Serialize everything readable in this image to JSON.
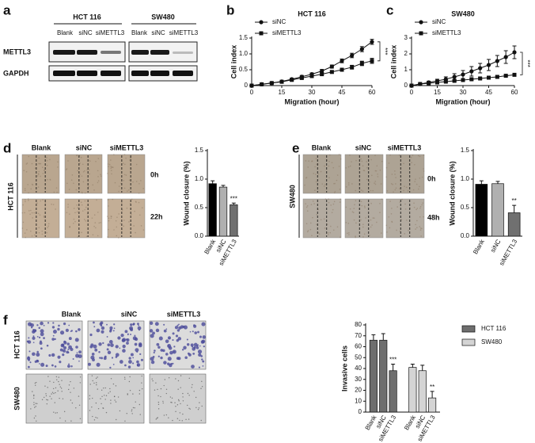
{
  "blot": {
    "panel": "a",
    "groups": [
      "HCT 116",
      "SW480"
    ],
    "lanes": [
      "Blank",
      "siNC",
      "siMETTL3"
    ],
    "rows": [
      "METTL3",
      "GAPDH"
    ]
  },
  "wound_d": {
    "panel": "d",
    "columns": [
      "Blank",
      "siNC",
      "siMETTL3"
    ],
    "rows": [
      "0h",
      "22h"
    ],
    "cell_line": "HCT 116"
  },
  "wound_e": {
    "panel": "e",
    "columns": [
      "Blank",
      "siNC",
      "siMETTL3"
    ],
    "rows": [
      "0h",
      "48h"
    ],
    "cell_line": "SW480"
  },
  "invasion": {
    "panel": "f",
    "columns": [
      "Blank",
      "siNC",
      "siMETTL3"
    ],
    "rows": [
      "HCT 116",
      "SW480"
    ]
  },
  "chart_data": [
    {
      "type": "line",
      "panel": "b",
      "title": "HCT 116",
      "xlabel": "Migration (hour)",
      "ylabel": "Cell index",
      "x": [
        0,
        5,
        10,
        15,
        20,
        25,
        30,
        35,
        40,
        45,
        50,
        55,
        60
      ],
      "series": [
        {
          "name": "siNC",
          "marker": "circle",
          "color": "#111111",
          "values": [
            0,
            0.04,
            0.08,
            0.13,
            0.2,
            0.28,
            0.36,
            0.46,
            0.6,
            0.78,
            0.95,
            1.15,
            1.38
          ],
          "errors": [
            0,
            0.02,
            0.02,
            0.03,
            0.03,
            0.04,
            0.04,
            0.05,
            0.05,
            0.06,
            0.07,
            0.08,
            0.08
          ]
        },
        {
          "name": "siMETTL3",
          "marker": "square",
          "color": "#111111",
          "values": [
            0,
            0.04,
            0.08,
            0.12,
            0.18,
            0.24,
            0.3,
            0.36,
            0.43,
            0.5,
            0.58,
            0.7,
            0.78
          ],
          "errors": [
            0,
            0.02,
            0.02,
            0.02,
            0.03,
            0.03,
            0.03,
            0.04,
            0.04,
            0.05,
            0.06,
            0.07,
            0.08
          ]
        }
      ],
      "xlim": [
        0,
        60
      ],
      "xticks": [
        0,
        15,
        30,
        45,
        60
      ],
      "ylim": [
        0,
        1.5
      ],
      "yticks": [
        0,
        0.5,
        {
          "value": 1,
          "label": "1.0"
        },
        1.5
      ],
      "annotation": "***"
    },
    {
      "type": "line",
      "panel": "c",
      "title": "SW480",
      "xlabel": "Migration (hour)",
      "ylabel": "Cell index",
      "x": [
        0,
        5,
        10,
        15,
        20,
        25,
        30,
        35,
        40,
        45,
        50,
        55,
        60
      ],
      "series": [
        {
          "name": "siNC",
          "marker": "circle",
          "color": "#111111",
          "values": [
            0,
            0.1,
            0.2,
            0.3,
            0.4,
            0.55,
            0.7,
            0.9,
            1.1,
            1.3,
            1.55,
            1.8,
            2.1
          ],
          "errors": [
            0,
            0.05,
            0.08,
            0.1,
            0.15,
            0.2,
            0.25,
            0.3,
            0.3,
            0.35,
            0.35,
            0.4,
            0.4
          ]
        },
        {
          "name": "siMETTL3",
          "marker": "square",
          "color": "#111111",
          "values": [
            0,
            0.1,
            0.15,
            0.2,
            0.25,
            0.3,
            0.35,
            0.4,
            0.45,
            0.5,
            0.55,
            0.62,
            0.68
          ],
          "errors": [
            0,
            0.03,
            0.03,
            0.04,
            0.04,
            0.05,
            0.05,
            0.05,
            0.05,
            0.05,
            0.05,
            0.05,
            0.05
          ]
        }
      ],
      "xlim": [
        0,
        60
      ],
      "xticks": [
        0,
        15,
        30,
        45,
        60
      ],
      "ylim": [
        0,
        3
      ],
      "yticks": [
        0,
        1,
        2,
        3
      ],
      "annotation": "***"
    },
    {
      "type": "bar",
      "ylabel": "Wound closure (%)",
      "categories": [
        "Blank",
        "siNC",
        "siMETTL3"
      ],
      "values": [
        0.92,
        0.86,
        0.55
      ],
      "errors": [
        0.05,
        0.03,
        0.03
      ],
      "colors": [
        "#000000",
        "#b0b0b0",
        "#707070"
      ],
      "ylim": [
        0,
        1.5
      ],
      "yticks": [
        {
          "value": 0,
          "label": "0.0"
        },
        0.5,
        {
          "value": 1,
          "label": "1.0"
        },
        1.5
      ],
      "annotation": "***"
    },
    {
      "type": "bar",
      "ylabel": "Wound closure (%)",
      "categories": [
        "Blank",
        "siNC",
        "siMETTL3"
      ],
      "values": [
        0.91,
        0.92,
        0.41
      ],
      "errors": [
        0.06,
        0.04,
        0.13
      ],
      "colors": [
        "#000000",
        "#b0b0b0",
        "#707070"
      ],
      "ylim": [
        0,
        1.5
      ],
      "yticks": [
        {
          "value": 0,
          "label": "0.0"
        },
        0.5,
        {
          "value": 1,
          "label": "1.0"
        },
        1.5
      ],
      "annotation": "**"
    },
    {
      "type": "grouped_bar",
      "ylabel": "Invasive cells",
      "categories": [
        "Blank",
        "siNC",
        "siMETTL3"
      ],
      "series": [
        {
          "name": "HCT 116",
          "color": "#6e6e6e",
          "values": [
            66,
            66,
            38
          ],
          "errors": [
            5,
            6,
            6
          ],
          "annotation": "***"
        },
        {
          "name": "SW480",
          "color": "#d4d4d4",
          "values": [
            41,
            38,
            13
          ],
          "errors": [
            3,
            5,
            6
          ],
          "annotation": "**"
        }
      ],
      "ylim": [
        0,
        80
      ],
      "yticks": [
        0,
        10,
        20,
        30,
        40,
        50,
        60,
        70,
        80
      ]
    }
  ]
}
